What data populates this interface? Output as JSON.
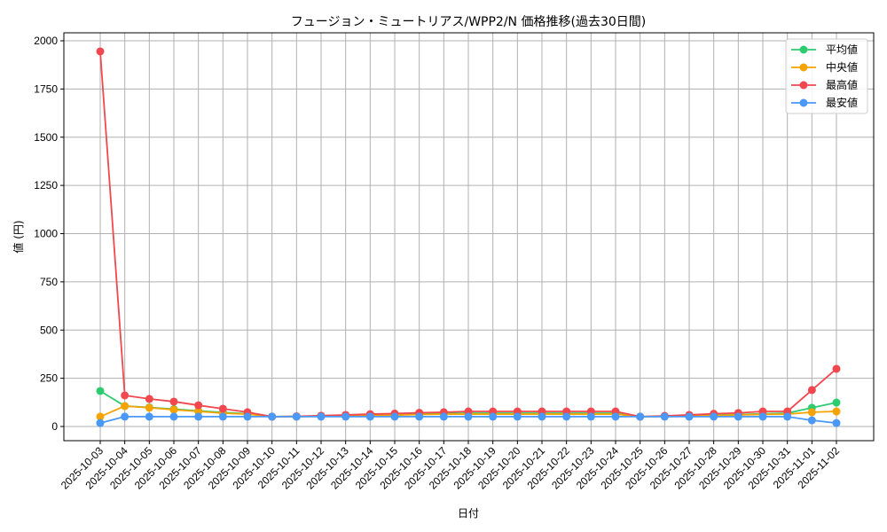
{
  "chart_data": {
    "type": "line",
    "title": "フュージョン・ミュートリアス/WPP2/N 価格推移(過去30日間)",
    "xlabel": "日付",
    "ylabel": "値 (円)",
    "ylim": [
      -70,
      2090
    ],
    "yticks": [
      0,
      250,
      500,
      750,
      1000,
      1250,
      1500,
      1750,
      2000
    ],
    "grid": true,
    "legend_position": "upper right",
    "x": [
      "2025-10-03",
      "2025-10-04",
      "2025-10-05",
      "2025-10-06",
      "2025-10-07",
      "2025-10-08",
      "2025-10-09",
      "2025-10-10",
      "2025-10-11",
      "2025-10-12",
      "2025-10-13",
      "2025-10-14",
      "2025-10-15",
      "2025-10-16",
      "2025-10-17",
      "2025-10-18",
      "2025-10-19",
      "2025-10-20",
      "2025-10-21",
      "2025-10-22",
      "2025-10-23",
      "2025-10-24",
      "2025-10-25",
      "2025-10-26",
      "2025-10-27",
      "2025-10-28",
      "2025-10-29",
      "2025-10-30",
      "2025-10-31",
      "2025-11-01",
      "2025-11-02"
    ],
    "series": [
      {
        "name": "平均値",
        "color": "#2ecc71",
        "values": [
          184,
          106,
          99,
          90,
          81,
          73,
          66,
          51,
          52,
          54,
          56,
          58,
          61,
          64,
          67,
          69,
          69,
          69,
          69,
          69,
          69,
          69,
          51,
          53,
          56,
          59,
          62,
          66,
          69,
          97,
          124
        ]
      },
      {
        "name": "中央値",
        "color": "#f5a300",
        "values": [
          51,
          106,
          97,
          87,
          78,
          69,
          64,
          51,
          51,
          53,
          55,
          57,
          59,
          62,
          64,
          64,
          64,
          64,
          64,
          64,
          64,
          64,
          51,
          52,
          55,
          57,
          60,
          63,
          64,
          74,
          78
        ]
      },
      {
        "name": "最高値",
        "color": "#f0484e",
        "values": [
          1945,
          161,
          143,
          129,
          110,
          92,
          74,
          51,
          53,
          56,
          60,
          64,
          67,
          71,
          74,
          78,
          78,
          78,
          78,
          78,
          78,
          78,
          51,
          55,
          60,
          66,
          70,
          78,
          78,
          189,
          299
        ]
      },
      {
        "name": "最安値",
        "color": "#4a98f7",
        "values": [
          18,
          51,
          51,
          51,
          51,
          51,
          51,
          51,
          51,
          51,
          51,
          51,
          51,
          51,
          51,
          51,
          51,
          51,
          51,
          51,
          51,
          51,
          51,
          51,
          51,
          51,
          51,
          51,
          51,
          32,
          18
        ]
      }
    ]
  }
}
